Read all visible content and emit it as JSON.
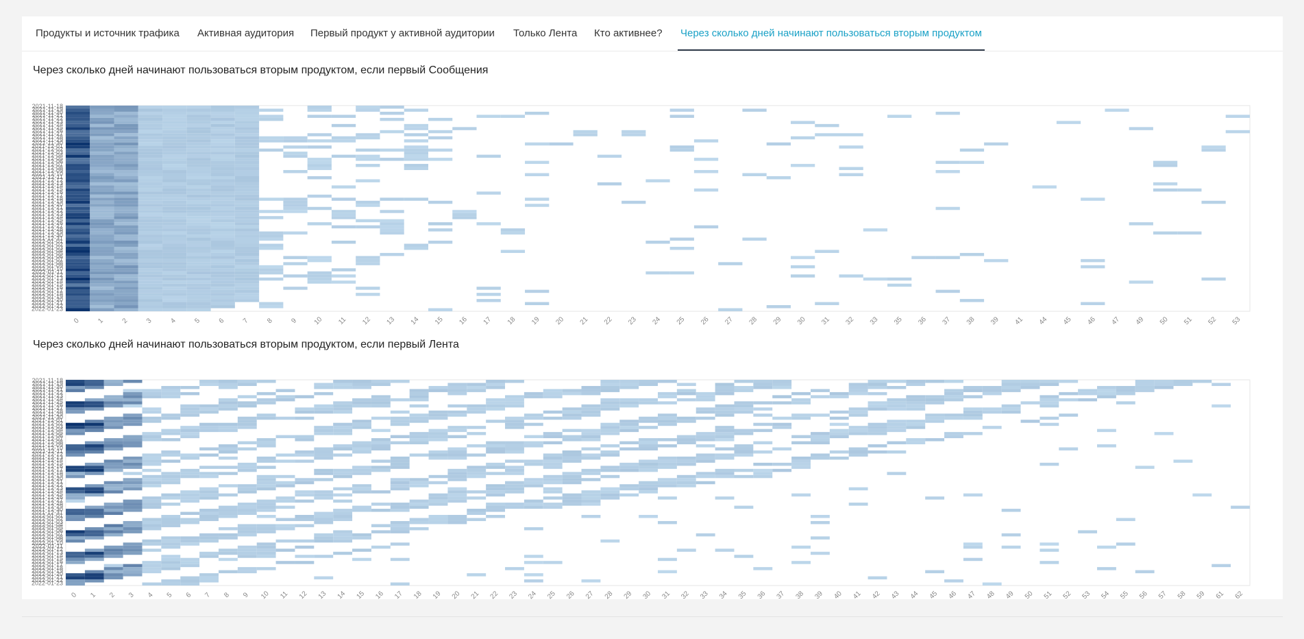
{
  "tabs": [
    {
      "label": "Продукты и источник трафика",
      "active": false
    },
    {
      "label": "Активная аудитория",
      "active": false
    },
    {
      "label": "Первый продукт у активной аудитории",
      "active": false
    },
    {
      "label": "Только Лента",
      "active": false
    },
    {
      "label": "Кто активнее?",
      "active": false
    },
    {
      "label": "Через сколько дней начинают пользоваться вторым продуктом",
      "active": true
    }
  ],
  "colors": {
    "accent": "#1aa1c6",
    "tab_underline": "#2f3a4a",
    "cell_light": "#b9d6ec",
    "cell_dark": "#08306b"
  },
  "charts": [
    {
      "title": "Через сколько дней начинают пользоваться вторым продуктом, если первый Сообщения",
      "chart_data": {
        "type": "heatmap",
        "x": [
          0,
          1,
          2,
          3,
          4,
          5,
          6,
          7,
          8,
          9,
          10,
          11,
          12,
          13,
          14,
          15,
          16,
          17,
          18,
          19,
          20,
          21,
          22,
          23,
          24,
          25,
          26,
          27,
          28,
          29,
          30,
          31,
          32,
          33,
          35,
          36,
          37,
          38,
          39,
          41,
          44,
          45,
          46,
          47,
          49,
          50,
          51,
          52,
          53
        ],
        "y": [
          "2021-11-18",
          "2021-11-19",
          "2021-11-20",
          "2021-11-21",
          "2021-11-22",
          "2021-11-23",
          "2021-11-24",
          "2021-11-25",
          "2021-11-26",
          "2021-11-27",
          "2021-11-28",
          "2021-11-29",
          "2021-11-30",
          "2021-12-01",
          "2021-12-02",
          "2021-12-03",
          "2021-12-04",
          "2021-12-05",
          "2021-12-06",
          "2021-12-07",
          "2021-12-08",
          "2021-12-09",
          "2021-12-10",
          "2021-12-11",
          "2021-12-12",
          "2021-12-13",
          "2021-12-14",
          "2021-12-15",
          "2021-12-16",
          "2021-12-17",
          "2021-12-18",
          "2021-12-19",
          "2021-12-20",
          "2021-12-21",
          "2021-12-22",
          "2021-12-23",
          "2021-12-24",
          "2021-12-25",
          "2021-12-26",
          "2021-12-27",
          "2021-12-28",
          "2021-12-29",
          "2021-12-30",
          "2021-12-31",
          "2022-01-01",
          "2022-01-02",
          "2022-01-03",
          "2022-01-04",
          "2022-01-05",
          "2022-01-06",
          "2022-01-07",
          "2022-01-08",
          "2022-01-09",
          "2022-01-10",
          "2022-01-11",
          "2022-01-12",
          "2022-01-13",
          "2022-01-14",
          "2022-01-15",
          "2022-01-16",
          "2022-01-17",
          "2022-01-18",
          "2022-01-19",
          "2022-01-20",
          "2022-01-21",
          "2022-01-22",
          "2022-01-23"
        ],
        "note": "cohort intensity highest at day 0, decreasing with day; triangular shape"
      }
    },
    {
      "title": "Через сколько дней начинают пользоваться вторым продуктом, если первый Лента",
      "chart_data": {
        "type": "heatmap",
        "x": [
          0,
          1,
          2,
          3,
          4,
          5,
          6,
          7,
          8,
          9,
          10,
          11,
          12,
          13,
          14,
          15,
          16,
          17,
          18,
          19,
          20,
          21,
          22,
          23,
          24,
          25,
          26,
          27,
          28,
          29,
          30,
          31,
          32,
          33,
          34,
          35,
          36,
          37,
          38,
          39,
          40,
          41,
          42,
          43,
          44,
          45,
          46,
          47,
          48,
          49,
          50,
          51,
          52,
          53,
          54,
          55,
          56,
          57,
          58,
          59,
          61,
          62
        ],
        "y": [
          "2021-11-18",
          "2021-11-19",
          "2021-11-20",
          "2021-11-21",
          "2021-11-22",
          "2021-11-23",
          "2021-11-24",
          "2021-11-25",
          "2021-11-26",
          "2021-11-27",
          "2021-11-28",
          "2021-11-29",
          "2021-11-30",
          "2021-12-01",
          "2021-12-02",
          "2021-12-03",
          "2021-12-04",
          "2021-12-05",
          "2021-12-06",
          "2021-12-07",
          "2021-12-08",
          "2021-12-09",
          "2021-12-10",
          "2021-12-11",
          "2021-12-12",
          "2021-12-13",
          "2021-12-14",
          "2021-12-15",
          "2021-12-16",
          "2021-12-17",
          "2021-12-18",
          "2021-12-19",
          "2021-12-20",
          "2021-12-21",
          "2021-12-22",
          "2021-12-23",
          "2021-12-24",
          "2021-12-25",
          "2021-12-26",
          "2021-12-27",
          "2021-12-28",
          "2021-12-29",
          "2021-12-30",
          "2021-12-31",
          "2022-01-01",
          "2022-01-02",
          "2022-01-03",
          "2022-01-04",
          "2022-01-05",
          "2022-01-06",
          "2022-01-07",
          "2022-01-08",
          "2022-01-09",
          "2022-01-10",
          "2022-01-11",
          "2022-01-12",
          "2022-01-13",
          "2022-01-14",
          "2022-01-15",
          "2022-01-16",
          "2022-01-17",
          "2022-01-18",
          "2022-01-19",
          "2022-01-20",
          "2022-01-21",
          "2022-01-22",
          "2022-01-23"
        ],
        "note": "weekly banding pattern, darkest at day 0-1"
      }
    }
  ]
}
